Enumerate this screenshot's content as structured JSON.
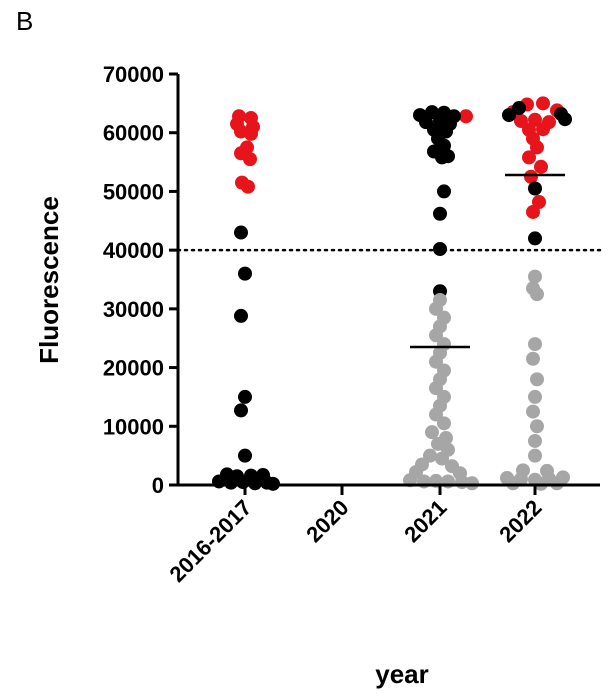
{
  "panel_label": "B",
  "colors": {
    "black_point": "#000000",
    "red_point": "#e8141b",
    "gray_point": "#a6a6a6",
    "axis": "#000000"
  },
  "chart_data": {
    "type": "scatter",
    "title": "",
    "xlabel": "year",
    "ylabel": "Fluorescence",
    "categories": [
      "2016-2017",
      "2020",
      "2021",
      "2022"
    ],
    "ylim": [
      0,
      70000
    ],
    "yticks": [
      0,
      10000,
      20000,
      30000,
      40000,
      50000,
      60000,
      70000
    ],
    "ytick_labels": [
      "0",
      "10000",
      "20000",
      "30000",
      "40000",
      "50000",
      "60000",
      "70000"
    ],
    "grid": false,
    "legend": "none",
    "threshold": 40000,
    "medians": [
      {
        "category": "2021",
        "value": 23500
      },
      {
        "category": "2022",
        "value": 52800
      }
    ],
    "series": [
      {
        "color": "red",
        "points": [
          {
            "category": "2016-2017",
            "offset": -6,
            "y": 62800
          },
          {
            "category": "2016-2017",
            "offset": 6,
            "y": 62500
          },
          {
            "category": "2016-2017",
            "offset": -8,
            "y": 61500
          },
          {
            "category": "2016-2017",
            "offset": 8,
            "y": 61000
          },
          {
            "category": "2016-2017",
            "offset": -4,
            "y": 60200
          },
          {
            "category": "2016-2017",
            "offset": 6,
            "y": 59800
          },
          {
            "category": "2016-2017",
            "offset": 2,
            "y": 57500
          },
          {
            "category": "2016-2017",
            "offset": -4,
            "y": 56500
          },
          {
            "category": "2016-2017",
            "offset": 5,
            "y": 55500
          },
          {
            "category": "2016-2017",
            "offset": -3,
            "y": 51500
          },
          {
            "category": "2016-2017",
            "offset": 3,
            "y": 50800
          },
          {
            "category": "2021",
            "offset": 26,
            "y": 62800
          },
          {
            "category": "2022",
            "offset": -22,
            "y": 63500
          },
          {
            "category": "2022",
            "offset": -8,
            "y": 64800
          },
          {
            "category": "2022",
            "offset": 8,
            "y": 65000
          },
          {
            "category": "2022",
            "offset": 22,
            "y": 63800
          },
          {
            "category": "2022",
            "offset": -14,
            "y": 62000
          },
          {
            "category": "2022",
            "offset": 0,
            "y": 62200
          },
          {
            "category": "2022",
            "offset": 14,
            "y": 61800
          },
          {
            "category": "2022",
            "offset": -6,
            "y": 60500
          },
          {
            "category": "2022",
            "offset": 8,
            "y": 60600
          },
          {
            "category": "2022",
            "offset": -2,
            "y": 59000
          },
          {
            "category": "2022",
            "offset": 2,
            "y": 57500
          },
          {
            "category": "2022",
            "offset": -6,
            "y": 55800
          },
          {
            "category": "2022",
            "offset": 6,
            "y": 54200
          },
          {
            "category": "2022",
            "offset": -4,
            "y": 52500
          },
          {
            "category": "2022",
            "offset": 4,
            "y": 48200
          },
          {
            "category": "2022",
            "offset": -2,
            "y": 46500
          }
        ]
      },
      {
        "color": "black",
        "points": [
          {
            "category": "2016-2017",
            "offset": -4,
            "y": 43000
          },
          {
            "category": "2016-2017",
            "offset": 0,
            "y": 36000
          },
          {
            "category": "2016-2017",
            "offset": -4,
            "y": 28800
          },
          {
            "category": "2016-2017",
            "offset": 0,
            "y": 15000
          },
          {
            "category": "2016-2017",
            "offset": -4,
            "y": 12700
          },
          {
            "category": "2016-2017",
            "offset": 0,
            "y": 5000
          },
          {
            "category": "2016-2017",
            "offset": -18,
            "y": 1800
          },
          {
            "category": "2016-2017",
            "offset": -8,
            "y": 1500
          },
          {
            "category": "2016-2017",
            "offset": 6,
            "y": 1600
          },
          {
            "category": "2016-2017",
            "offset": 18,
            "y": 1700
          },
          {
            "category": "2016-2017",
            "offset": -26,
            "y": 600
          },
          {
            "category": "2016-2017",
            "offset": -14,
            "y": 400
          },
          {
            "category": "2016-2017",
            "offset": -2,
            "y": 500
          },
          {
            "category": "2016-2017",
            "offset": 10,
            "y": 300
          },
          {
            "category": "2016-2017",
            "offset": 22,
            "y": 400
          },
          {
            "category": "2016-2017",
            "offset": 28,
            "y": 200
          },
          {
            "category": "2021",
            "offset": -20,
            "y": 63000
          },
          {
            "category": "2021",
            "offset": -8,
            "y": 63500
          },
          {
            "category": "2021",
            "offset": 4,
            "y": 63400
          },
          {
            "category": "2021",
            "offset": 14,
            "y": 62800
          },
          {
            "category": "2021",
            "offset": -14,
            "y": 61800
          },
          {
            "category": "2021",
            "offset": 0,
            "y": 62000
          },
          {
            "category": "2021",
            "offset": 10,
            "y": 61500
          },
          {
            "category": "2021",
            "offset": -6,
            "y": 60500
          },
          {
            "category": "2021",
            "offset": 6,
            "y": 60200
          },
          {
            "category": "2021",
            "offset": -2,
            "y": 59000
          },
          {
            "category": "2021",
            "offset": 4,
            "y": 57800
          },
          {
            "category": "2021",
            "offset": -6,
            "y": 56800
          },
          {
            "category": "2021",
            "offset": 2,
            "y": 55800
          },
          {
            "category": "2021",
            "offset": 8,
            "y": 56000
          },
          {
            "category": "2021",
            "offset": 4,
            "y": 50000
          },
          {
            "category": "2021",
            "offset": 0,
            "y": 46200
          },
          {
            "category": "2021",
            "offset": 0,
            "y": 40200
          },
          {
            "category": "2021",
            "offset": 0,
            "y": 33000
          },
          {
            "category": "2022",
            "offset": -26,
            "y": 63000
          },
          {
            "category": "2022",
            "offset": 26,
            "y": 63200
          },
          {
            "category": "2022",
            "offset": -16,
            "y": 64200
          },
          {
            "category": "2022",
            "offset": 30,
            "y": 62300
          },
          {
            "category": "2022",
            "offset": 0,
            "y": 50500
          },
          {
            "category": "2022",
            "offset": 0,
            "y": 42000
          }
        ]
      },
      {
        "color": "gray",
        "points": [
          {
            "category": "2021",
            "offset": 0,
            "y": 31500
          },
          {
            "category": "2021",
            "offset": -4,
            "y": 30000
          },
          {
            "category": "2021",
            "offset": 4,
            "y": 28500
          },
          {
            "category": "2021",
            "offset": 0,
            "y": 27000
          },
          {
            "category": "2021",
            "offset": -4,
            "y": 25500
          },
          {
            "category": "2021",
            "offset": 4,
            "y": 24000
          },
          {
            "category": "2021",
            "offset": 0,
            "y": 22500
          },
          {
            "category": "2021",
            "offset": -4,
            "y": 21000
          },
          {
            "category": "2021",
            "offset": 4,
            "y": 19500
          },
          {
            "category": "2021",
            "offset": 0,
            "y": 18000
          },
          {
            "category": "2021",
            "offset": -4,
            "y": 16500
          },
          {
            "category": "2021",
            "offset": 4,
            "y": 15000
          },
          {
            "category": "2021",
            "offset": 0,
            "y": 13500
          },
          {
            "category": "2021",
            "offset": -4,
            "y": 12000
          },
          {
            "category": "2021",
            "offset": 4,
            "y": 10500
          },
          {
            "category": "2021",
            "offset": -8,
            "y": 9000
          },
          {
            "category": "2021",
            "offset": 6,
            "y": 8000
          },
          {
            "category": "2021",
            "offset": -2,
            "y": 7000
          },
          {
            "category": "2021",
            "offset": 8,
            "y": 6000
          },
          {
            "category": "2021",
            "offset": -10,
            "y": 5000
          },
          {
            "category": "2021",
            "offset": 2,
            "y": 4500
          },
          {
            "category": "2021",
            "offset": -18,
            "y": 3500
          },
          {
            "category": "2021",
            "offset": 12,
            "y": 3200
          },
          {
            "category": "2021",
            "offset": -24,
            "y": 2200
          },
          {
            "category": "2021",
            "offset": 20,
            "y": 2000
          },
          {
            "category": "2021",
            "offset": -30,
            "y": 800
          },
          {
            "category": "2021",
            "offset": -16,
            "y": 600
          },
          {
            "category": "2021",
            "offset": -4,
            "y": 700
          },
          {
            "category": "2021",
            "offset": 8,
            "y": 600
          },
          {
            "category": "2021",
            "offset": 22,
            "y": 500
          },
          {
            "category": "2021",
            "offset": 32,
            "y": 300
          },
          {
            "category": "2022",
            "offset": 0,
            "y": 35500
          },
          {
            "category": "2022",
            "offset": -2,
            "y": 33500
          },
          {
            "category": "2022",
            "offset": 2,
            "y": 32500
          },
          {
            "category": "2022",
            "offset": 0,
            "y": 24000
          },
          {
            "category": "2022",
            "offset": -2,
            "y": 21500
          },
          {
            "category": "2022",
            "offset": 2,
            "y": 18000
          },
          {
            "category": "2022",
            "offset": 0,
            "y": 15000
          },
          {
            "category": "2022",
            "offset": -2,
            "y": 12500
          },
          {
            "category": "2022",
            "offset": 2,
            "y": 10000
          },
          {
            "category": "2022",
            "offset": 0,
            "y": 7500
          },
          {
            "category": "2022",
            "offset": 0,
            "y": 5000
          },
          {
            "category": "2022",
            "offset": -12,
            "y": 2500
          },
          {
            "category": "2022",
            "offset": 12,
            "y": 2400
          },
          {
            "category": "2022",
            "offset": -28,
            "y": 1200
          },
          {
            "category": "2022",
            "offset": -14,
            "y": 1000
          },
          {
            "category": "2022",
            "offset": 0,
            "y": 900
          },
          {
            "category": "2022",
            "offset": 14,
            "y": 1100
          },
          {
            "category": "2022",
            "offset": 28,
            "y": 1300
          },
          {
            "category": "2022",
            "offset": -22,
            "y": 300
          },
          {
            "category": "2022",
            "offset": 6,
            "y": 200
          },
          {
            "category": "2022",
            "offset": 22,
            "y": 300
          }
        ]
      }
    ]
  }
}
